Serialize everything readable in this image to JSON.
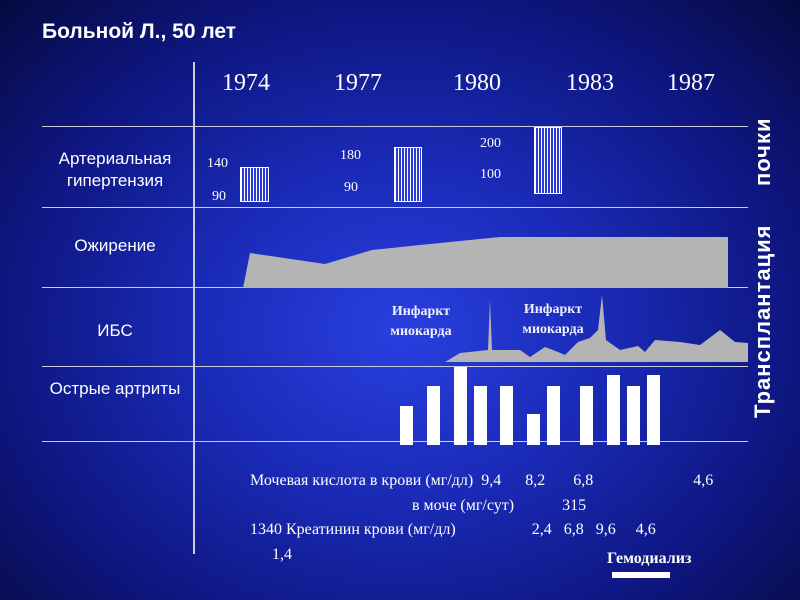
{
  "title": "Больной Л., 50 лет",
  "years": [
    "1974",
    "1977",
    "1980",
    "1983",
    "1987"
  ],
  "rows": [
    "Артериальная гипертензия",
    "Ожирение",
    "ИБС",
    "Острые артриты"
  ],
  "bp": [
    {
      "sys": "140",
      "dia": "90"
    },
    {
      "sys": "180",
      "dia": "90"
    },
    {
      "sys": "200",
      "dia": "100"
    }
  ],
  "infarcts": [
    "Инфаркт миокарда",
    "Инфаркт миокарда"
  ],
  "side_text": [
    "Трансплантация",
    "почки"
  ],
  "labs": {
    "uric_blood": "Мочевая кислота в крови (мг/дл)  9,4      8,2       6,8                         4,6",
    "uric_urine": "в моче (мг/сут)            315",
    "creatinine": "1340 Креатинин крови (мг/дл)                   2,4   6,8   9,6     4,6",
    "last_value": "1,4"
  },
  "hemodialysis": "Гемодиализ",
  "colors": {
    "background": "#1a2bb8",
    "shape": "#b4b4b4",
    "bars": "#ffffff"
  },
  "chart_data": {
    "type": "diagram",
    "blood_pressure": [
      {
        "year": "1974",
        "systolic": 140,
        "diastolic": 90
      },
      {
        "year": "1977",
        "systolic": 180,
        "diastolic": 90
      },
      {
        "year": "1980",
        "systolic": 200,
        "diastolic": 100
      }
    ],
    "arthritis_bar_levels": [
      0.5,
      0.75,
      1.0,
      0.75,
      0.75,
      0.4,
      0.75,
      0.75,
      0.9,
      0.75,
      0.9
    ]
  }
}
